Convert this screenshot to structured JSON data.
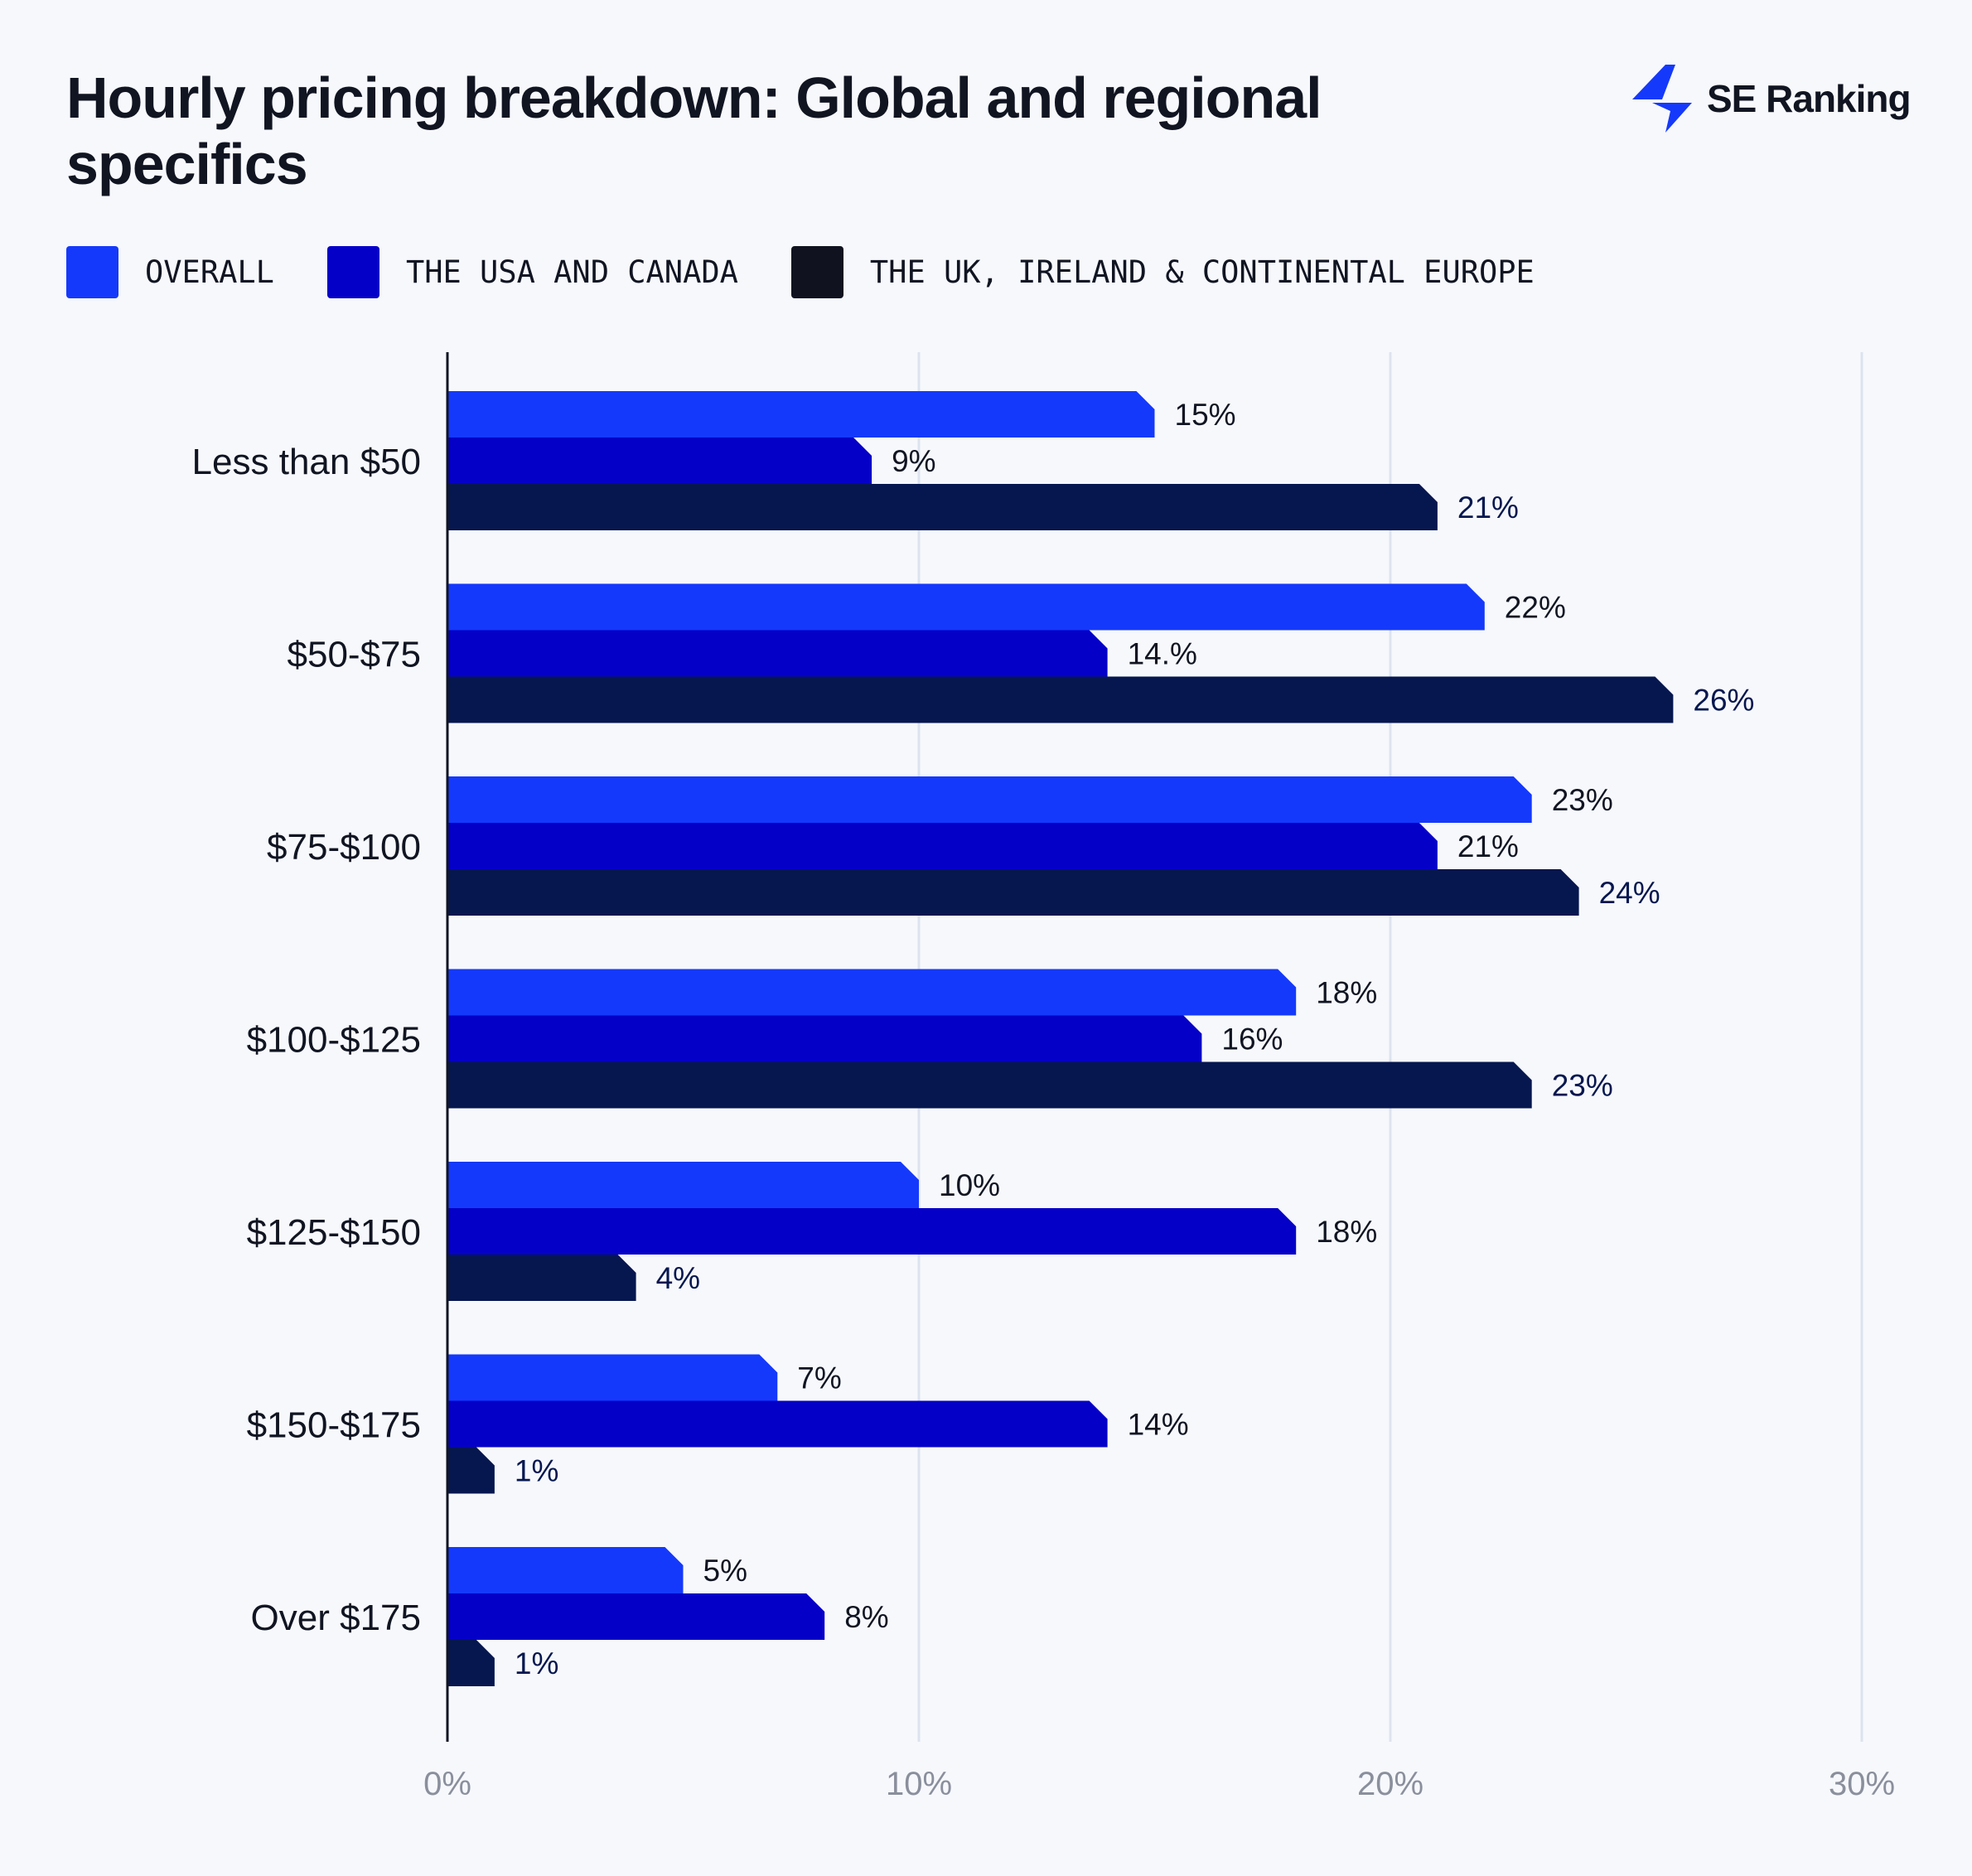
{
  "title": "Hourly pricing breakdown: Global and regional specifics",
  "logo": {
    "text": "SE Ranking",
    "icon": "lightning-bolt-icon",
    "color": "#1539fb"
  },
  "chart_data": {
    "type": "bar",
    "orientation": "horizontal",
    "title": "Hourly pricing breakdown: Global and regional specifics",
    "categories": [
      "Less than $50",
      "$50-$75",
      "$75-$100",
      "$100-$125",
      "$125-$150",
      "$150-$175",
      "Over $175"
    ],
    "series": [
      {
        "name": "OVERALL",
        "color": "#1539fb",
        "label_color": "#111522",
        "values": [
          15,
          22,
          23,
          18,
          10,
          7,
          5
        ],
        "labels": [
          "15%",
          "22%",
          "23%",
          "18%",
          "10%",
          "7%",
          "5%"
        ]
      },
      {
        "name": "THE USA AND CANADA",
        "color": "#0500c8",
        "label_color": "#111522",
        "values": [
          9,
          14,
          21,
          16,
          18,
          14,
          8
        ],
        "labels": [
          "9%",
          "14.%",
          "21%",
          "16%",
          "18%",
          "14%",
          "8%"
        ]
      },
      {
        "name": "THE UK, IRELAND & CONTINENTAL EUROPE",
        "color": "#06174f",
        "legend_color": "#10131f",
        "label_color": "#06174f",
        "values": [
          21,
          26,
          24,
          23,
          4,
          1,
          1
        ],
        "labels": [
          "21%",
          "26%",
          "24%",
          "23%",
          "4%",
          "1%",
          "1%"
        ]
      }
    ],
    "xlim": [
      0,
      30
    ],
    "xticks": [
      0,
      10,
      20,
      30
    ],
    "xtick_labels": [
      "0%",
      "10%",
      "20%",
      "30%"
    ],
    "xlabel": "",
    "ylabel": "",
    "grid": "vertical",
    "legend": "top-left"
  }
}
